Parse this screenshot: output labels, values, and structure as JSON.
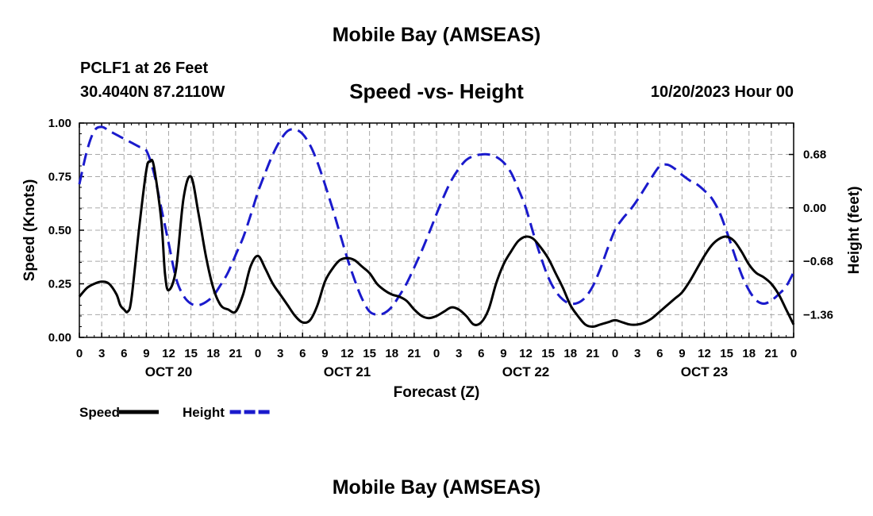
{
  "page_title": "Mobile Bay (AMSEAS)",
  "bottom_title": "Mobile Bay (AMSEAS)",
  "station": "PCLF1 at 26 Feet",
  "coordinates": "30.4040N  87.2110W",
  "issued": "10/20/2023 Hour 00",
  "chart_data": {
    "type": "line",
    "title": "Speed -vs- Height",
    "xlabel": "Forecast (Z)",
    "ylabel": "Speed (Knots)",
    "y2label": "Height (feet)",
    "grid": true,
    "legend_position": "bottom-left",
    "xlim": [
      0,
      96
    ],
    "ylim": [
      0,
      1.0
    ],
    "y2lim": [
      -1.65,
      1.08
    ],
    "y_ticks": [
      0.0,
      0.25,
      0.5,
      0.75,
      1.0
    ],
    "y_tick_labels": [
      "0.00",
      "0.25",
      "0.50",
      "0.75",
      "1.00"
    ],
    "y2_ticks": [
      -1.36,
      -0.68,
      0.0,
      0.68
    ],
    "y2_tick_labels": [
      "−1.36",
      "−0.68",
      "0.00",
      "0.68"
    ],
    "x_ticks": [
      0,
      3,
      6,
      9,
      12,
      15,
      18,
      21,
      24,
      27,
      30,
      33,
      36,
      39,
      42,
      45,
      48,
      51,
      54,
      57,
      60,
      63,
      66,
      69,
      72,
      75,
      78,
      81,
      84,
      87,
      90,
      93,
      96
    ],
    "x_tick_labels": [
      "0",
      "3",
      "6",
      "9",
      "12",
      "15",
      "18",
      "21",
      "0",
      "3",
      "6",
      "9",
      "12",
      "15",
      "18",
      "21",
      "0",
      "3",
      "6",
      "9",
      "12",
      "15",
      "18",
      "21",
      "0",
      "3",
      "6",
      "9",
      "12",
      "15",
      "18",
      "21",
      "0"
    ],
    "day_labels": [
      {
        "x": 12,
        "label": "OCT 20"
      },
      {
        "x": 36,
        "label": "OCT 21"
      },
      {
        "x": 60,
        "label": "OCT 22"
      },
      {
        "x": 84,
        "label": "OCT 23"
      }
    ],
    "series": [
      {
        "name": "Speed",
        "axis": "left",
        "color": "#000000",
        "style": "solid",
        "x": [
          0,
          1,
          2,
          3,
          4,
          5,
          5.5,
          6,
          6.5,
          7,
          8,
          9,
          9.5,
          10,
          11,
          11.5,
          12,
          13,
          14,
          15,
          16,
          17,
          18,
          19,
          20,
          21,
          22,
          23,
          24,
          25,
          26,
          27,
          28,
          29,
          30,
          31,
          32,
          33,
          34,
          35,
          36,
          37,
          38,
          39,
          40,
          41,
          42,
          43,
          44,
          45,
          46,
          47,
          48,
          49,
          50,
          51,
          52,
          53,
          54,
          55,
          56,
          57,
          58,
          59,
          60,
          61,
          62,
          63,
          64,
          65,
          66,
          67,
          68,
          69,
          70,
          71,
          72,
          73,
          74,
          75,
          76,
          77,
          78,
          79,
          80,
          81,
          82,
          83,
          84,
          85,
          86,
          87,
          88,
          89,
          90,
          91,
          92,
          93,
          94,
          95,
          96
        ],
        "values": [
          0.19,
          0.23,
          0.25,
          0.26,
          0.25,
          0.2,
          0.15,
          0.13,
          0.12,
          0.18,
          0.5,
          0.78,
          0.82,
          0.8,
          0.55,
          0.3,
          0.22,
          0.32,
          0.65,
          0.75,
          0.58,
          0.38,
          0.23,
          0.15,
          0.13,
          0.12,
          0.2,
          0.33,
          0.38,
          0.32,
          0.25,
          0.2,
          0.15,
          0.1,
          0.07,
          0.08,
          0.15,
          0.26,
          0.32,
          0.36,
          0.37,
          0.36,
          0.33,
          0.3,
          0.25,
          0.22,
          0.2,
          0.19,
          0.17,
          0.13,
          0.1,
          0.09,
          0.1,
          0.12,
          0.14,
          0.13,
          0.1,
          0.06,
          0.07,
          0.13,
          0.25,
          0.34,
          0.4,
          0.45,
          0.47,
          0.46,
          0.42,
          0.37,
          0.3,
          0.23,
          0.15,
          0.1,
          0.06,
          0.05,
          0.06,
          0.07,
          0.08,
          0.07,
          0.06,
          0.06,
          0.07,
          0.09,
          0.12,
          0.15,
          0.18,
          0.21,
          0.26,
          0.32,
          0.38,
          0.43,
          0.46,
          0.47,
          0.45,
          0.4,
          0.34,
          0.3,
          0.28,
          0.25,
          0.2,
          0.13,
          0.06
        ]
      },
      {
        "name": "Height",
        "axis": "right",
        "color": "#1a1acc",
        "style": "dashed",
        "x": [
          0,
          1,
          2,
          3,
          4,
          5,
          6,
          7,
          8,
          9,
          10,
          11,
          12,
          13,
          14,
          15,
          16,
          17,
          18,
          19,
          20,
          21,
          22,
          23,
          24,
          25,
          26,
          27,
          28,
          29,
          30,
          31,
          32,
          33,
          34,
          35,
          36,
          37,
          38,
          39,
          40,
          41,
          42,
          43,
          44,
          45,
          46,
          47,
          48,
          49,
          50,
          51,
          52,
          53,
          54,
          55,
          56,
          57,
          58,
          59,
          60,
          61,
          62,
          63,
          64,
          65,
          66,
          67,
          68,
          69,
          70,
          71,
          72,
          73,
          74,
          75,
          76,
          77,
          78,
          79,
          80,
          81,
          82,
          83,
          84,
          85,
          86,
          87,
          88,
          89,
          90,
          91,
          92,
          93,
          94,
          95,
          96
        ],
        "values": [
          0.3,
          0.72,
          0.98,
          1.03,
          0.98,
          0.93,
          0.88,
          0.83,
          0.78,
          0.73,
          0.45,
          0.0,
          -0.45,
          -0.9,
          -1.12,
          -1.22,
          -1.24,
          -1.2,
          -1.12,
          -0.98,
          -0.82,
          -0.6,
          -0.38,
          -0.1,
          0.2,
          0.45,
          0.68,
          0.86,
          0.98,
          1.0,
          0.94,
          0.8,
          0.58,
          0.3,
          0.0,
          -0.32,
          -0.64,
          -0.92,
          -1.16,
          -1.32,
          -1.36,
          -1.34,
          -1.26,
          -1.12,
          -0.96,
          -0.76,
          -0.55,
          -0.32,
          -0.08,
          0.15,
          0.35,
          0.5,
          0.61,
          0.66,
          0.68,
          0.68,
          0.65,
          0.58,
          0.45,
          0.24,
          0.0,
          -0.32,
          -0.62,
          -0.88,
          -1.06,
          -1.17,
          -1.22,
          -1.21,
          -1.14,
          -1.0,
          -0.78,
          -0.52,
          -0.28,
          -0.14,
          -0.03,
          0.1,
          0.25,
          0.4,
          0.53,
          0.55,
          0.5,
          0.42,
          0.35,
          0.3,
          0.22,
          0.12,
          -0.05,
          -0.3,
          -0.58,
          -0.85,
          -1.05,
          -1.18,
          -1.22,
          -1.18,
          -1.1,
          -1.0,
          -0.82
        ]
      }
    ]
  }
}
